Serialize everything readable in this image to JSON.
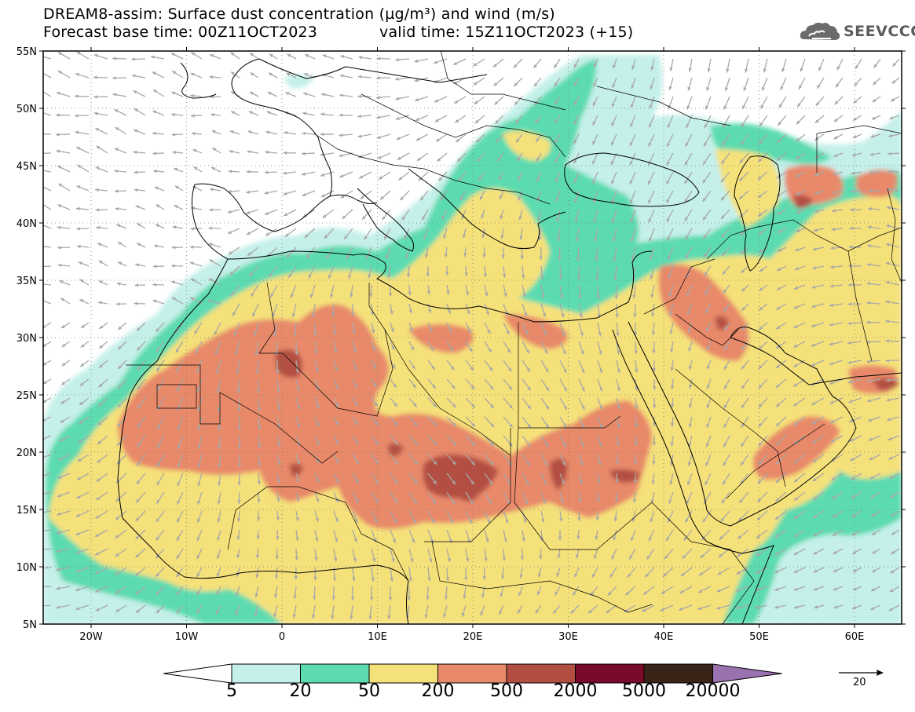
{
  "header": {
    "title_line1": "DREAM8-assim: Surface dust concentration (µg/m³) and wind (m/s)",
    "base_time": "Forecast base time: 00Z11OCT2023",
    "valid_time": "valid time: 15Z11OCT2023 (+15)"
  },
  "logo": {
    "text": "SEEVCCC",
    "icon": "cloud-logo-icon"
  },
  "axes": {
    "lat_labels": [
      "55N",
      "50N",
      "45N",
      "40N",
      "35N",
      "30N",
      "25N",
      "20N",
      "15N",
      "10N",
      "5N"
    ],
    "lon_labels": [
      "20W",
      "10W",
      "0",
      "10E",
      "20E",
      "30E",
      "40E",
      "50E",
      "60E"
    ]
  },
  "colorbar": {
    "labels": [
      "5",
      "20",
      "50",
      "200",
      "500",
      "2000",
      "5000",
      "20000"
    ],
    "colors": [
      "#ffffff",
      "#c5f0ea",
      "#5ddbb0",
      "#f5e17a",
      "#e8896a",
      "#b24f42",
      "#7a0a2a",
      "#3a2418",
      "#9b72b0"
    ]
  },
  "wind_reference": {
    "value": "20",
    "icon": "arrow-right-icon"
  }
}
